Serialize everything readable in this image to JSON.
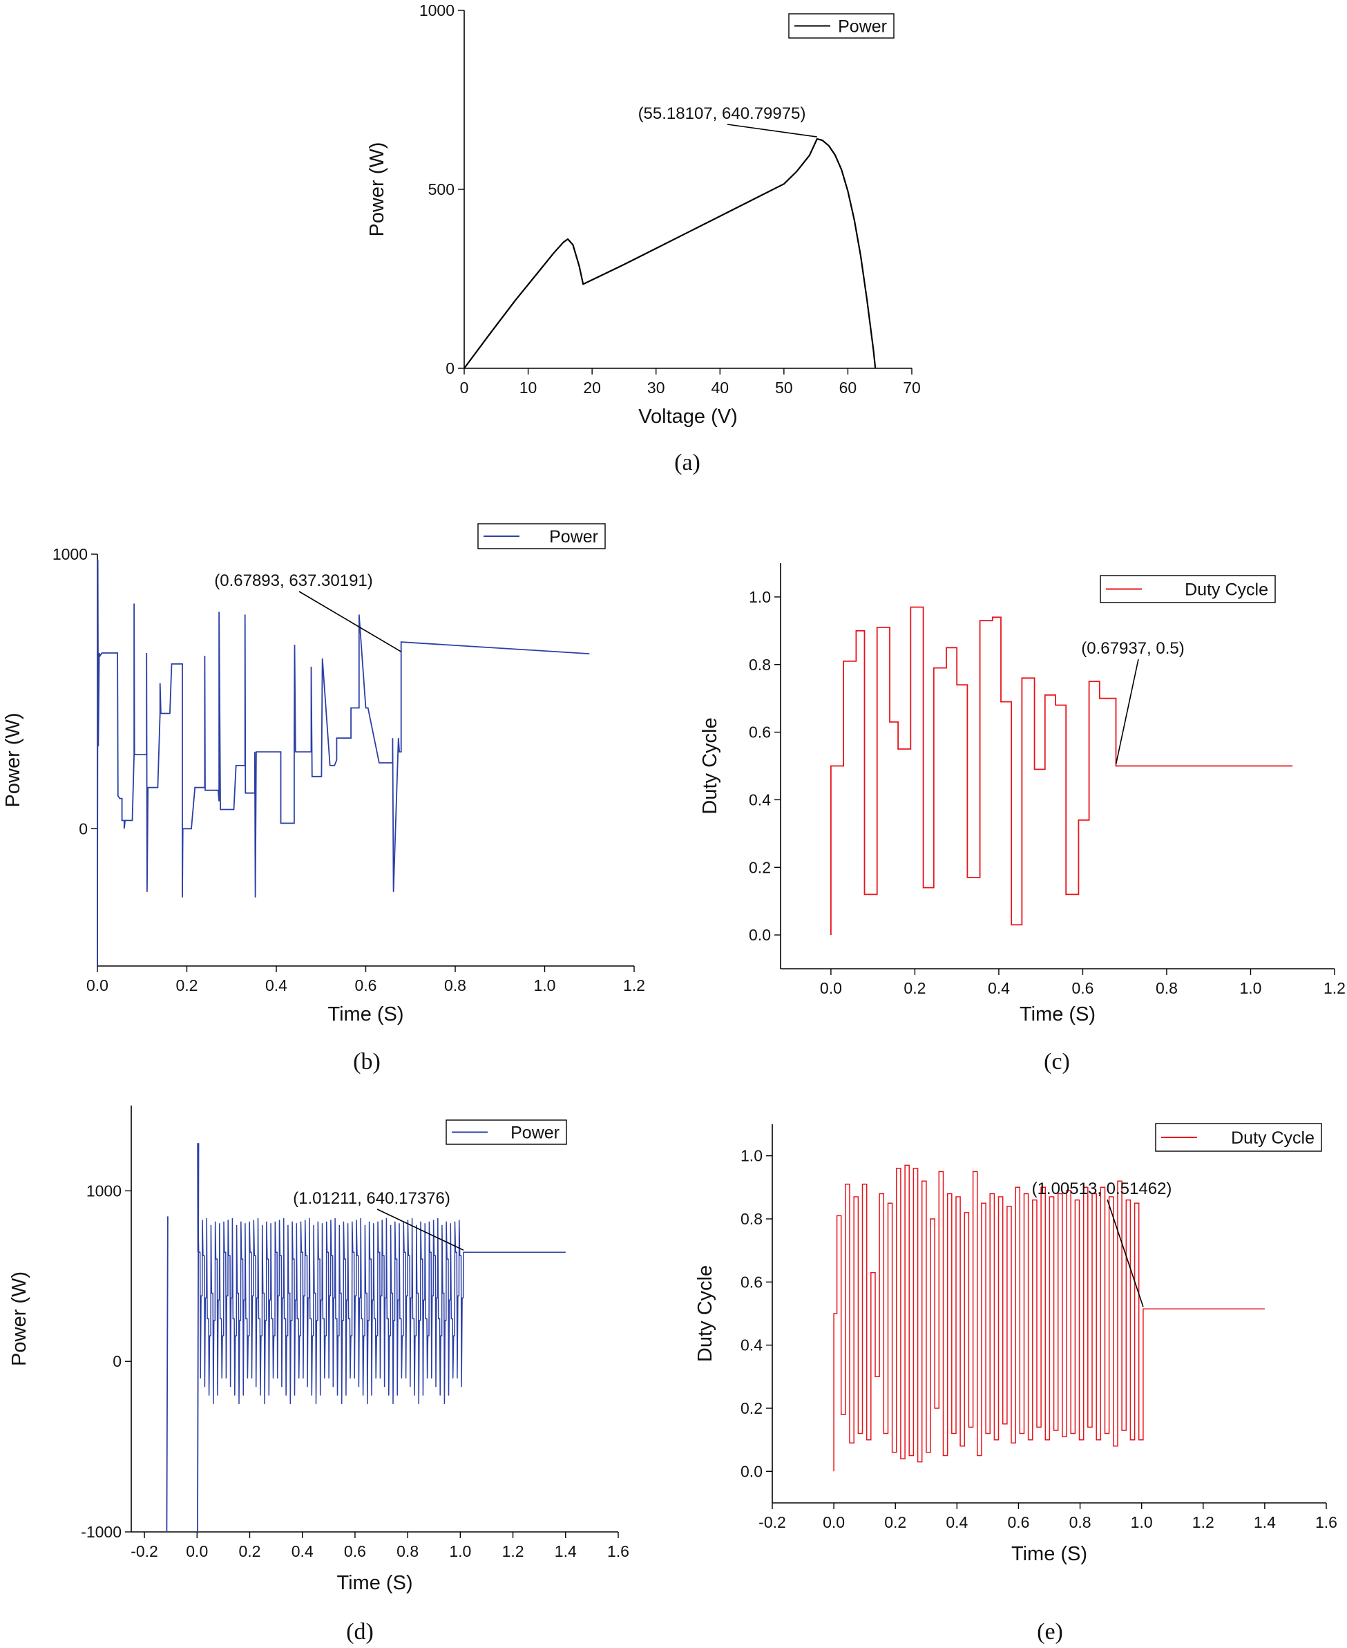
{
  "chart_data": [
    {
      "panel": "a",
      "caption": "(a)",
      "type": "line",
      "xlabel": "Voltage (V)",
      "ylabel": "Power (W)",
      "xlim": [
        0,
        70
      ],
      "ylim": [
        0,
        1000
      ],
      "xticks": [
        0,
        10,
        20,
        30,
        40,
        50,
        60,
        70
      ],
      "yticks": [
        0,
        500,
        1000
      ],
      "legend": "top-right",
      "color": "#000000",
      "series": [
        {
          "name": "Power",
          "x": [
            0,
            4,
            8,
            12,
            14,
            15.5,
            16.2,
            17,
            18,
            18.6,
            25,
            30,
            35,
            40,
            45,
            50,
            52,
            54,
            55.18,
            56,
            57,
            58,
            59,
            60,
            61,
            62,
            63,
            64,
            64.3
          ],
          "values": [
            0,
            96,
            190,
            278,
            322,
            352,
            361,
            345,
            285,
            235,
            290,
            335,
            380,
            425,
            470,
            515,
            550,
            595,
            640.8,
            637,
            622,
            596,
            555,
            495,
            415,
            315,
            190,
            50,
            0
          ]
        }
      ],
      "annotation": {
        "label": "(55.18107, 640.79975)",
        "x": 55.18107,
        "y": 640.79975
      }
    },
    {
      "panel": "b",
      "caption": "(b)",
      "type": "line",
      "xlabel": "Time (S)",
      "ylabel": "Power (W)",
      "xlim": [
        0,
        1.2
      ],
      "ylim": [
        -500,
        1000
      ],
      "xticks": [
        "0.0",
        "0.2",
        "0.4",
        "0.6",
        "0.8",
        "1.0",
        "1.2"
      ],
      "yticks": [
        0,
        1000
      ],
      "legend": "top-right",
      "color": "#2B3FA6",
      "series": [
        {
          "name": "Power",
          "x": [
            0,
            0.001,
            0.002,
            0.004,
            0.006,
            0.01,
            0.012,
            0.045,
            0.046,
            0.05,
            0.055,
            0.055,
            0.06,
            0.06,
            0.062,
            0.066,
            0.078,
            0.082,
            0.082,
            0.083,
            0.085,
            0.11,
            0.11,
            0.111,
            0.113,
            0.118,
            0.135,
            0.14,
            0.14,
            0.142,
            0.162,
            0.166,
            0.166,
            0.19,
            0.19,
            0.191,
            0.193,
            0.21,
            0.218,
            0.22,
            0.24,
            0.24,
            0.241,
            0.245,
            0.27,
            0.272,
            0.272,
            0.275,
            0.305,
            0.31,
            0.31,
            0.33,
            0.33,
            0.331,
            0.34,
            0.35,
            0.352,
            0.352,
            0.353,
            0.355,
            0.39,
            0.4,
            0.41,
            0.41,
            0.44,
            0.44,
            0.441,
            0.443,
            0.475,
            0.478,
            0.478,
            0.48,
            0.5,
            0.5,
            0.501,
            0.503,
            0.52,
            0.53,
            0.535,
            0.535,
            0.565,
            0.567,
            0.567,
            0.585,
            0.585,
            0.6,
            0.605,
            0.605,
            0.63,
            0.632,
            0.632,
            0.66,
            0.66,
            0.662,
            0.673,
            0.675,
            0.675,
            0.679,
            0.679,
            1.1
          ],
          "values": [
            -500,
            980,
            300,
            640,
            630,
            640,
            640,
            640,
            120,
            110,
            110,
            30,
            30,
            0,
            30,
            30,
            30,
            270,
            820,
            270,
            270,
            270,
            640,
            -230,
            150,
            150,
            150,
            420,
            530,
            420,
            420,
            600,
            600,
            600,
            -250,
            0,
            0,
            0,
            150,
            150,
            150,
            630,
            140,
            140,
            140,
            100,
            790,
            70,
            70,
            230,
            230,
            230,
            780,
            130,
            130,
            130,
            130,
            280,
            -250,
            280,
            280,
            280,
            280,
            20,
            20,
            280,
            670,
            280,
            280,
            280,
            590,
            190,
            190,
            190,
            190,
            620,
            230,
            230,
            250,
            330,
            330,
            330,
            440,
            440,
            780,
            440,
            440,
            440,
            240,
            240,
            240,
            240,
            330,
            -230,
            330,
            280,
            280,
            280,
            680,
            637.3
          ],
          "end_x": 1.1,
          "end_value": 637.30191
        }
      ],
      "annotation": {
        "label": "(0.67893, 637.30191)",
        "x": 0.67893,
        "y": 637.30191
      }
    },
    {
      "panel": "c",
      "caption": "(c)",
      "type": "line",
      "xlabel": "Time (S)",
      "ylabel": "Duty Cycle",
      "xlim": [
        -0.12,
        1.2
      ],
      "ylim": [
        -0.1,
        1.1
      ],
      "xticks": [
        "0.0",
        "0.2",
        "0.4",
        "0.6",
        "0.8",
        "1.0",
        "1.2"
      ],
      "yticks": [
        "0.0",
        "0.2",
        "0.4",
        "0.6",
        "0.8",
        "1.0"
      ],
      "legend": "top-right",
      "color": "#E8141B",
      "series": [
        {
          "name": "Duty Cycle",
          "x": [
            0,
            0.03,
            0.06,
            0.08,
            0.11,
            0.14,
            0.16,
            0.19,
            0.22,
            0.245,
            0.275,
            0.3,
            0.325,
            0.355,
            0.385,
            0.405,
            0.43,
            0.455,
            0.485,
            0.51,
            0.535,
            0.56,
            0.59,
            0.615,
            0.64,
            0.679,
            1.1
          ],
          "values": [
            0,
            0.5,
            0.81,
            0.9,
            0.12,
            0.91,
            0.63,
            0.55,
            0.97,
            0.14,
            0.79,
            0.85,
            0.74,
            0.17,
            0.93,
            0.94,
            0.69,
            0.03,
            0.76,
            0.49,
            0.71,
            0.68,
            0.12,
            0.34,
            0.75,
            0.7,
            0.5
          ]
        }
      ],
      "annotation": {
        "label": "(0.67937, 0.5)",
        "x": 0.67937,
        "y": 0.5
      }
    },
    {
      "panel": "d",
      "caption": "(d)",
      "type": "line",
      "xlabel": "Time (S)",
      "ylabel": "Power (W)",
      "xlim": [
        -0.25,
        1.6
      ],
      "ylim": [
        -1000,
        1500
      ],
      "xticks": [
        "-0.2",
        "0.0",
        "0.2",
        "0.4",
        "0.6",
        "0.8",
        "1.0",
        "1.2",
        "1.4",
        "1.6"
      ],
      "yticks": [
        -1000,
        0,
        1000
      ],
      "legend": "top-right",
      "color": "#2B3FA6",
      "series": [
        {
          "name": "Power",
          "start_x": 0.0,
          "end_oscillation_x": 1.012,
          "oscillation_high": [
            820,
            830,
            840,
            800,
            820,
            810
          ],
          "oscillation_mid": [
            640,
            620,
            250,
            400,
            600,
            250
          ],
          "oscillation_low": [
            -100,
            -150,
            -200,
            -250,
            -200,
            -100
          ],
          "end_x": 1.4,
          "end_value": 640.17376,
          "pre_spikes": [
            {
              "x": -0.115,
              "values": [
                -1000,
                850,
                -1000
              ]
            },
            {
              "x": 0.002,
              "values": [
                -1000,
                1280
              ]
            }
          ]
        }
      ],
      "annotation": {
        "label": "(1.01211, 640.17376)",
        "x": 1.01211,
        "y": 640.17376
      }
    },
    {
      "panel": "e",
      "caption": "(e)",
      "type": "line",
      "xlabel": "Time (S)",
      "ylabel": "Duty Cycle",
      "xlim": [
        -0.2,
        1.6
      ],
      "ylim": [
        -0.1,
        1.1
      ],
      "xticks": [
        "-0.2",
        "0.0",
        "0.2",
        "0.4",
        "0.6",
        "0.8",
        "1.0",
        "1.2",
        "1.4",
        "1.6"
      ],
      "yticks": [
        "0.0",
        "0.2",
        "0.4",
        "0.6",
        "0.8",
        "1.0"
      ],
      "legend": "top-right",
      "color": "#E8141B",
      "series": [
        {
          "name": "Duty Cycle",
          "start_x": 0.0,
          "end_oscillation_x": 1.005,
          "highs": [
            0.81,
            0.91,
            0.87,
            0.91,
            0.63,
            0.88,
            0.85,
            0.96,
            0.97,
            0.96,
            0.92,
            0.8,
            0.95,
            0.88,
            0.87,
            0.82,
            0.95,
            0.85,
            0.88,
            0.87,
            0.84,
            0.9,
            0.88,
            0.86,
            0.9,
            0.87,
            0.88,
            0.89,
            0.86,
            0.9,
            0.88,
            0.9,
            0.87,
            0.92,
            0.86,
            0.85
          ],
          "lows": [
            0.18,
            0.09,
            0.12,
            0.1,
            0.3,
            0.12,
            0.06,
            0.04,
            0.05,
            0.03,
            0.06,
            0.2,
            0.05,
            0.12,
            0.08,
            0.14,
            0.05,
            0.12,
            0.1,
            0.15,
            0.09,
            0.12,
            0.1,
            0.14,
            0.1,
            0.13,
            0.11,
            0.12,
            0.1,
            0.14,
            0.1,
            0.12,
            0.08,
            0.13,
            0.1,
            0.1
          ],
          "end_x": 1.4,
          "end_value": 0.51462
        }
      ],
      "annotation": {
        "label": "(1.00513, 0.51462)",
        "x": 1.00513,
        "y": 0.51462
      }
    }
  ]
}
